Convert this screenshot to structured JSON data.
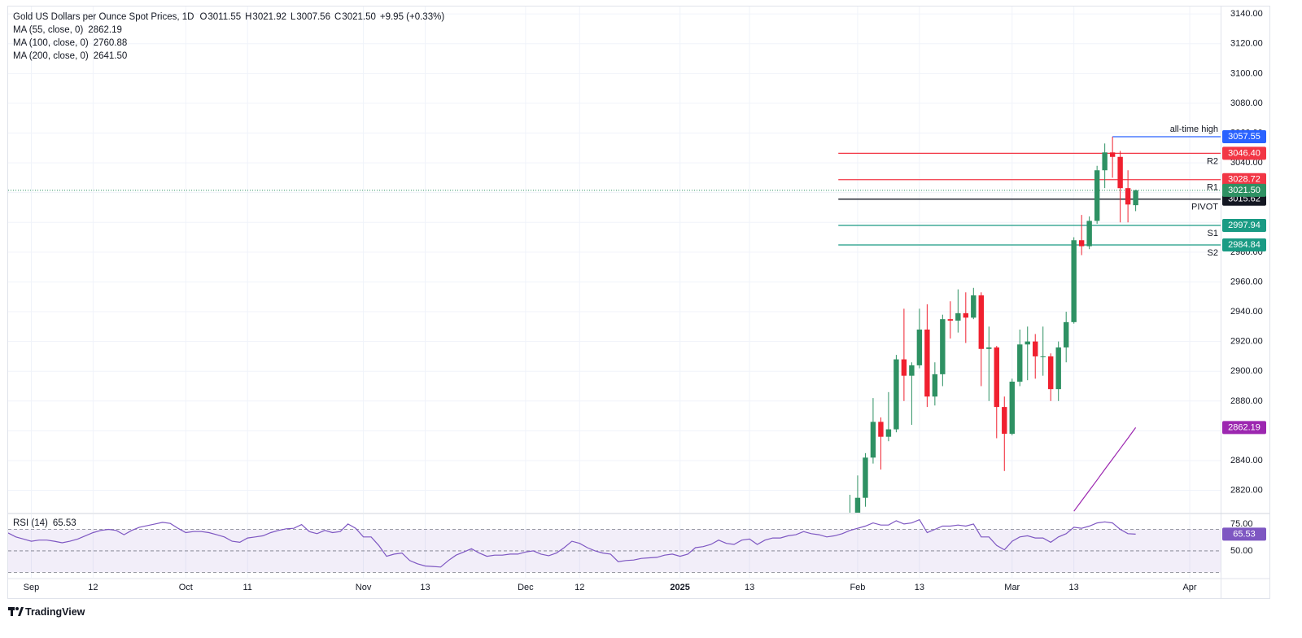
{
  "chart_data": {
    "type": "candlestick",
    "title": "Gold US Dollars per Ounce Spot Prices, 1D",
    "ohlc_legend": [
      {
        "key": "O",
        "text": "3011.55"
      },
      {
        "key": "H",
        "text": "3021.92"
      },
      {
        "key": "L",
        "text": "3007.56"
      },
      {
        "key": "C",
        "text": "3021.50"
      }
    ],
    "change": "+9.95 (+0.33%)",
    "up_color": "#2e9163",
    "down_color": "#f0202f",
    "label_color": "#2962ff",
    "grid": true,
    "xlim": [
      -110,
      47
    ],
    "xticks": [
      {
        "value": -107,
        "label": "Sep"
      },
      {
        "value": -99,
        "label": "12"
      },
      {
        "value": -87,
        "label": "Oct"
      },
      {
        "value": -79,
        "label": "11"
      },
      {
        "value": -64,
        "label": "Nov"
      },
      {
        "value": -56,
        "label": "13"
      },
      {
        "value": -43,
        "label": "Dec"
      },
      {
        "value": -36,
        "label": "12"
      },
      {
        "value": -23,
        "label": "2025"
      },
      {
        "value": -14,
        "label": "13"
      },
      {
        "value": 0,
        "label": "Feb"
      },
      {
        "value": 8,
        "label": "13"
      },
      {
        "value": 20,
        "label": "Mar"
      },
      {
        "value": 28,
        "label": "13"
      },
      {
        "value": 43,
        "label": "Apr"
      }
    ],
    "ylim": [
      2805,
      3145
    ],
    "yticks": [
      {
        "value": 2820,
        "label": "2820.00"
      },
      {
        "value": 2840,
        "label": "2840.00"
      },
      {
        "value": 2860,
        "label": "2860.00"
      },
      {
        "value": 2880,
        "label": "2880.00"
      },
      {
        "value": 2900,
        "label": "2900.00"
      },
      {
        "value": 2920,
        "label": "2920.00"
      },
      {
        "value": 2940,
        "label": "2940.00"
      },
      {
        "value": 2960,
        "label": "2960.00"
      },
      {
        "value": 2980,
        "label": "2980.00"
      },
      {
        "value": 3000,
        "label": "3000.00"
      },
      {
        "value": 3020,
        "label": "3020.00"
      },
      {
        "value": 3040,
        "label": "3040.00"
      },
      {
        "value": 3060,
        "label": "3060.00"
      },
      {
        "value": 3080,
        "label": "3080.00"
      },
      {
        "value": 3100,
        "label": "3100.00"
      },
      {
        "value": 3120,
        "label": "3120.00"
      },
      {
        "value": 3140,
        "label": "3140.00"
      }
    ],
    "x": [
      -1,
      0,
      1,
      2,
      3,
      4,
      5,
      6,
      7,
      8,
      9,
      10,
      11,
      12,
      13,
      14,
      15,
      16,
      17,
      18,
      19,
      20,
      21,
      22,
      23,
      24,
      25,
      26,
      27,
      28,
      29,
      30,
      31,
      32,
      33,
      34,
      35,
      36
    ],
    "open": [
      2795,
      2798,
      2815,
      2842,
      2866,
      2856,
      2861,
      2908,
      2897,
      2904,
      2928,
      2883,
      2898,
      2935,
      2934,
      2939,
      2936,
      2951,
      2915,
      2916,
      2876,
      2858,
      2893,
      2918,
      2920,
      2910,
      2910,
      2888,
      2916,
      2933,
      2988,
      2984,
      3001,
      3035,
      3047,
      3044,
      3023,
      3011.55
    ],
    "high": [
      2817,
      2830,
      2845,
      2882,
      2869,
      2886,
      2911,
      2942,
      2906,
      2942,
      2945,
      2906,
      2938,
      2947,
      2955,
      2953,
      2956,
      2953,
      2930,
      2917,
      2883,
      2895,
      2928,
      2930,
      2925,
      2930,
      2912,
      2920,
      2940,
      2990,
      3005,
      3004,
      3038,
      3053,
      3057.55,
      3048,
      3035,
      3021.92
    ],
    "low": [
      2772,
      2781,
      2809,
      2838,
      2834,
      2853,
      2859,
      2880,
      2864,
      2902,
      2876,
      2877,
      2890,
      2922,
      2926,
      2919,
      2935,
      2890,
      2880,
      2855,
      2833,
      2857,
      2890,
      2894,
      2895,
      2897,
      2880,
      2880,
      2906,
      2932,
      2978,
      2982,
      2999,
      3023,
      3030,
      3000,
      3000,
      3007.56
    ],
    "close": [
      2798,
      2815,
      2842,
      2866,
      2856,
      2861,
      2908,
      2897,
      2904,
      2928,
      2883,
      2898,
      2935,
      2934,
      2939,
      2936,
      2951,
      2915,
      2916,
      2876,
      2858,
      2893,
      2918,
      2920,
      2910,
      2910,
      2888,
      2916,
      2933,
      2988,
      2984,
      3001,
      3035,
      3047,
      3044,
      3023,
      3012,
      3021.5
    ],
    "last_close_label": "3021.50",
    "ma": [
      {
        "name": "MA (55, close, 0)",
        "color": "#9c27b0",
        "x": [
          28,
          29,
          30,
          31,
          32,
          33,
          34,
          35,
          36
        ],
        "values": [
          2806,
          2813,
          2820,
          2827,
          2834,
          2841,
          2848,
          2855,
          2862.19
        ]
      },
      {
        "name": "MA (100, close, 0)",
        "color": "#f23645",
        "last": 2760.88
      },
      {
        "name": "MA (200, close, 0)",
        "color": "#ff9800",
        "last": 2641.5,
        "last_label": "2641.50"
      }
    ],
    "levels": [
      {
        "name": "all-time high",
        "value": 3057.55,
        "color": "#2962ff",
        "x_start": 33
      },
      {
        "name": "R2",
        "value": 3046.4,
        "value_label": "3046.40",
        "color": "#f23645",
        "x_start": -2.5
      },
      {
        "name": "R1",
        "value": 3028.72,
        "color": "#f23645",
        "x_start": -2.5
      },
      {
        "name": "PIVOT",
        "value": 3015.62,
        "color": "#131722",
        "x_start": -2.5
      },
      {
        "name": "S1",
        "value": 2997.94,
        "color": "#1a9b84",
        "x_start": -2.5
      },
      {
        "name": "S2",
        "value": 2984.84,
        "color": "#1a9b84",
        "x_start": -2.5
      }
    ],
    "rsi": {
      "name": "RSI (14)",
      "color": "#7e57c2",
      "ylim": [
        25,
        84
      ],
      "yticks": [
        {
          "value": 75,
          "label": "75.00"
        },
        {
          "value": 50,
          "label": "50.00"
        }
      ],
      "levels": [
        70,
        50,
        30
      ],
      "x": [
        -110,
        -109,
        -108,
        -107,
        -106,
        -105,
        -104,
        -103,
        -102,
        -101,
        -100,
        -99,
        -98,
        -97,
        -96,
        -95,
        -94,
        -93,
        -92,
        -91,
        -90,
        -89,
        -88,
        -87,
        -86,
        -85,
        -84,
        -83,
        -82,
        -81,
        -80,
        -79,
        -78,
        -77,
        -76,
        -75,
        -74,
        -73,
        -72,
        -71,
        -70,
        -69,
        -68,
        -67,
        -66,
        -65,
        -64,
        -63,
        -62,
        -61,
        -60,
        -59,
        -58,
        -57,
        -56,
        -55,
        -54,
        -53,
        -52,
        -51,
        -50,
        -49,
        -48,
        -47,
        -46,
        -45,
        -44,
        -43,
        -42,
        -41,
        -40,
        -39,
        -38,
        -37,
        -36,
        -35,
        -34,
        -33,
        -32,
        -31,
        -30,
        -29,
        -28,
        -27,
        -26,
        -25,
        -24,
        -23,
        -22,
        -21,
        -20,
        -19,
        -18,
        -17,
        -16,
        -15,
        -14,
        -13,
        -12,
        -11,
        -10,
        -9,
        -8,
        -7,
        -6,
        -5,
        -4,
        -3,
        -2,
        -1,
        0,
        1,
        2,
        3,
        4,
        5,
        6,
        7,
        8,
        9,
        10,
        11,
        12,
        13,
        14,
        15,
        16,
        17,
        18,
        19,
        20,
        21,
        22,
        23,
        24,
        25,
        26,
        27,
        28,
        29,
        30,
        31,
        32,
        33,
        34,
        35,
        36
      ],
      "values": [
        66.7,
        63,
        61,
        59,
        60,
        60,
        59,
        57.5,
        59,
        61,
        64,
        67,
        69,
        70,
        69,
        65,
        69,
        72,
        73.5,
        75,
        76.5,
        75.5,
        71,
        67,
        68,
        68,
        67,
        65,
        63,
        59,
        58,
        62,
        63,
        64,
        67,
        69,
        70.5,
        71,
        74.5,
        68,
        66,
        69,
        67,
        68,
        75,
        71,
        63,
        63,
        55,
        45,
        47,
        48,
        41,
        38,
        36,
        35.5,
        35,
        41,
        46,
        49,
        52,
        48,
        45,
        46,
        46,
        47,
        47,
        49,
        50,
        47,
        45.5,
        48,
        53,
        59,
        57,
        53,
        50,
        48,
        47,
        40,
        41,
        41.5,
        43,
        43.5,
        44,
        46,
        47,
        45,
        47,
        53,
        54,
        56,
        60,
        57,
        56,
        60,
        61,
        56,
        60,
        62,
        62,
        64,
        65,
        68,
        66,
        65,
        63,
        64,
        66,
        69,
        71,
        73,
        76,
        74,
        74,
        78,
        75,
        76,
        79,
        67,
        70,
        73,
        73,
        74,
        73,
        75,
        63,
        63,
        55,
        51,
        59,
        63,
        64,
        62,
        62,
        58,
        63,
        66,
        72,
        71,
        73,
        76,
        77,
        76,
        70,
        66,
        65.53
      ]
    }
  },
  "footer": {
    "brand": "TradingView"
  }
}
